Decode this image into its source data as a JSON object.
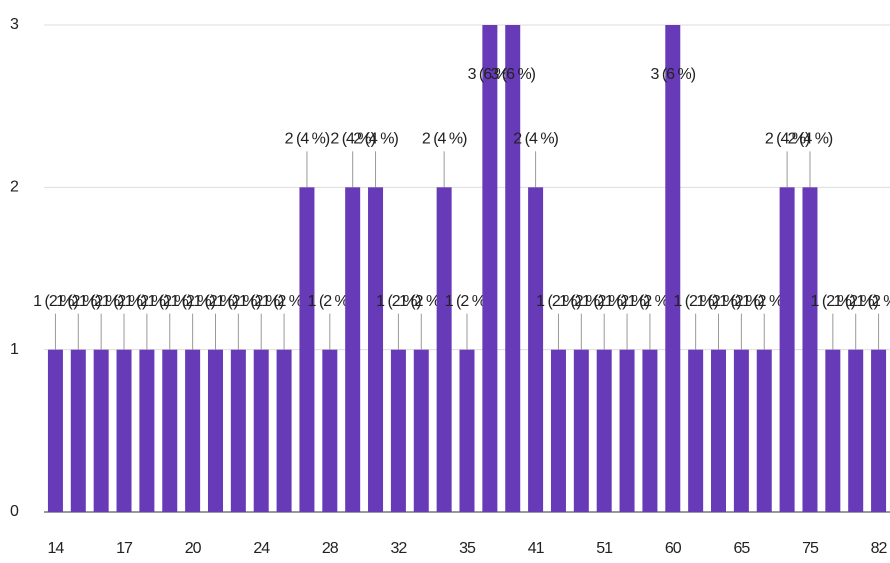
{
  "chart_data": {
    "type": "bar",
    "categories": [
      "14",
      null,
      null,
      "17",
      null,
      null,
      "20",
      null,
      null,
      "24",
      null,
      null,
      "28",
      null,
      null,
      "32",
      null,
      null,
      "35",
      null,
      null,
      "41",
      null,
      null,
      "51",
      null,
      null,
      "60",
      null,
      null,
      "65",
      null,
      null,
      "75",
      null,
      null,
      "82"
    ],
    "values": [
      1,
      1,
      1,
      1,
      1,
      1,
      1,
      1,
      1,
      1,
      1,
      2,
      1,
      2,
      2,
      1,
      1,
      2,
      1,
      3,
      3,
      2,
      1,
      1,
      1,
      1,
      1,
      3,
      1,
      1,
      1,
      1,
      2,
      2,
      1,
      1,
      1
    ],
    "value_labels": [
      "1 (2 %)",
      "1 (2 %)",
      "1 (2 %)",
      "1 (2 %)",
      "1 (2 %)",
      "1 (2 %)",
      "1 (2 %)",
      "1 (2 %)",
      "1 (2 %)",
      "1 (2 %)",
      "1 (2 %)",
      "2 (4 %)",
      "1 (2 %)",
      "2 (4 %)",
      "2 (4 %)",
      "1 (2 %)",
      "1 (2 %)",
      "2 (4 %)",
      "1 (2 %)",
      "3 (6 %)",
      "3 (6 %)",
      "2 (4 %)",
      "1 (2 %)",
      "1 (2 %)",
      "1 (2 %)",
      "1 (2 %)",
      "1 (2 %)",
      "3 (6 %)",
      "1 (2 %)",
      "1 (2 %)",
      "1 (2 %)",
      "1 (2 %)",
      "2 (4 %)",
      "2 (4 %)",
      "1 (2 %)",
      "1 (2 %)",
      "1 (2 %)"
    ],
    "color": "#673ab7",
    "ylim": [
      0,
      3
    ],
    "yticks": [
      0,
      1,
      2,
      3
    ],
    "grid": true
  }
}
